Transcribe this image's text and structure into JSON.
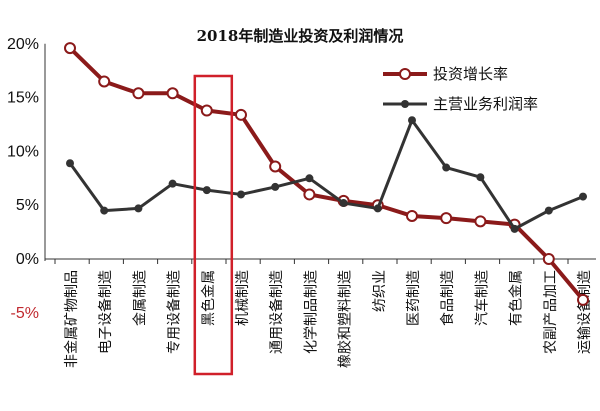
{
  "chart_data": {
    "type": "line",
    "title": "2018年制造业投资及利润情况",
    "categories": [
      "非金属矿物制品",
      "电子设备制造",
      "金属制造",
      "专用设备制造",
      "黑色金属",
      "机械制造",
      "通用设备制造",
      "化学制品制造",
      "橡胶和塑料制造",
      "纺织业",
      "医药制造",
      "食品制造",
      "汽车制造",
      "有色金属",
      "农副产品加工",
      "运输设备制造"
    ],
    "series": [
      {
        "name": "投资增长率",
        "color": "#8b1a1a",
        "marker": "circle",
        "values": [
          19.6,
          16.5,
          15.4,
          15.4,
          13.8,
          13.4,
          8.6,
          6.0,
          5.4,
          5.0,
          4.0,
          3.8,
          3.5,
          3.2,
          0.0,
          -3.8
        ]
      },
      {
        "name": "主营业务利润率",
        "color": "#333333",
        "marker": "dot",
        "values": [
          8.9,
          4.5,
          4.7,
          7.0,
          6.4,
          6.0,
          6.7,
          7.5,
          5.2,
          4.7,
          12.9,
          8.5,
          7.6,
          2.8,
          4.5,
          5.8
        ]
      }
    ],
    "ylim": [
      -5,
      20
    ],
    "yticks": [
      20,
      15,
      10,
      5,
      0,
      -5
    ],
    "ytick_labels": [
      "20%",
      "15%",
      "10%",
      "5%",
      "0%",
      "-5%"
    ],
    "highlight_category": "黑色金属",
    "legend_position": "top-right",
    "grid": false
  }
}
